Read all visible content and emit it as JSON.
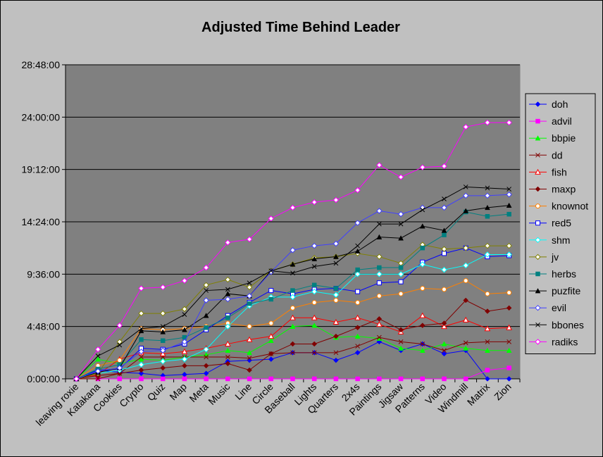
{
  "chart_data": {
    "type": "line",
    "title": "Adjusted Time Behind Leader",
    "xlabel": "",
    "ylabel": "",
    "y_unit": "hours",
    "ylim": [
      0,
      28.8
    ],
    "yticks": [
      0,
      4.8,
      9.6,
      14.4,
      19.2,
      24.0,
      28.8
    ],
    "ytick_labels": [
      "0:00:00",
      "4:48:00",
      "9:36:00",
      "14:24:00",
      "19:12:00",
      "24:00:00",
      "28:48:00"
    ],
    "grid": true,
    "legend_position": "right",
    "plot_background": "#808080",
    "categories": [
      "leaving roxie",
      "Katakana",
      "Cookies",
      "Crypto",
      "Quiz",
      "Map",
      "Meta",
      "Music",
      "Line",
      "Circle",
      "Baseball",
      "Lights",
      "Quarters",
      "2x4s",
      "Paintings",
      "Jigsaw",
      "Patterns",
      "Video",
      "Windmill",
      "Matrix",
      "Zion"
    ],
    "series": [
      {
        "name": "doh",
        "color": "#0000ff",
        "marker": "diamond",
        "values": [
          0,
          0.8,
          0.6,
          0.5,
          0.3,
          0.4,
          0.5,
          1.6,
          1.7,
          1.8,
          2.4,
          2.4,
          1.7,
          2.4,
          3.4,
          2.6,
          3.2,
          2.3,
          2.6,
          0,
          0
        ]
      },
      {
        "name": "advil",
        "color": "#ff00ff",
        "marker": "square",
        "values": [
          0,
          0,
          0,
          0,
          0,
          0,
          0,
          0,
          0,
          0,
          0,
          0,
          0,
          0,
          0,
          0,
          0,
          0,
          0,
          0.8,
          1.0
        ]
      },
      {
        "name": "bbpie",
        "color": "#00ff00",
        "marker": "triangle",
        "values": [
          0,
          1.8,
          1.4,
          1.8,
          1.7,
          2.0,
          2.2,
          2.6,
          2.4,
          3.5,
          4.8,
          4.9,
          3.8,
          3.9,
          3.7,
          2.8,
          2.6,
          3.2,
          2.8,
          2.6,
          2.6
        ]
      },
      {
        "name": "dd",
        "color": "#800000",
        "marker": "x",
        "values": [
          0,
          0,
          0.5,
          2.0,
          2.0,
          2.0,
          2.0,
          2.0,
          1.9,
          2.3,
          2.4,
          2.4,
          2.4,
          3.0,
          3.8,
          3.4,
          3.2,
          2.6,
          3.3,
          3.4,
          3.4
        ]
      },
      {
        "name": "fish",
        "color": "#ff0000",
        "marker": "triangle-open",
        "values": [
          0,
          0.4,
          1.8,
          2.4,
          2.3,
          2.5,
          2.8,
          3.2,
          3.6,
          3.9,
          5.6,
          5.6,
          5.2,
          5.6,
          5.0,
          4.3,
          5.8,
          4.8,
          5.4,
          4.6,
          4.7
        ]
      },
      {
        "name": "maxp",
        "color": "#800000",
        "marker": "diamond",
        "values": [
          0,
          0.3,
          0.5,
          0.8,
          1.0,
          1.2,
          1.2,
          1.4,
          0.8,
          2.3,
          3.2,
          3.2,
          3.9,
          4.7,
          5.5,
          4.5,
          4.9,
          5.1,
          7.2,
          6.2,
          6.5
        ]
      },
      {
        "name": "knownot",
        "color": "#ff8000",
        "marker": "circle-open",
        "values": [
          0,
          1.2,
          1.7,
          4.6,
          4.5,
          4.6,
          4.8,
          5.1,
          4.8,
          5.1,
          6.5,
          7.0,
          7.2,
          7.0,
          7.6,
          7.8,
          8.3,
          8.2,
          9.0,
          7.8,
          7.9
        ]
      },
      {
        "name": "red5",
        "color": "#0000ff",
        "marker": "square-open",
        "values": [
          0,
          0.8,
          0.9,
          2.8,
          2.7,
          3.2,
          4.5,
          5.8,
          7.0,
          8.1,
          7.8,
          8.2,
          8.3,
          8.0,
          8.8,
          8.9,
          10.7,
          11.5,
          12.0,
          11.2,
          11.3
        ]
      },
      {
        "name": "shm",
        "color": "#00ffff",
        "marker": "diamond-open",
        "values": [
          0,
          0.5,
          0.8,
          1.3,
          1.6,
          1.8,
          2.7,
          4.8,
          6.7,
          7.5,
          7.5,
          8.0,
          7.7,
          9.6,
          9.6,
          9.6,
          10.5,
          10.0,
          10.4,
          11.4,
          11.4
        ]
      },
      {
        "name": "jv",
        "color": "#808000",
        "marker": "diamond-open",
        "values": [
          0,
          0.5,
          3.4,
          6.0,
          6.0,
          6.4,
          8.6,
          9.1,
          8.4,
          9.9,
          10.5,
          11.1,
          11.2,
          11.5,
          11.2,
          10.6,
          12.3,
          11.9,
          12.0,
          12.2,
          12.2
        ]
      },
      {
        "name": "herbs",
        "color": "#008080",
        "marker": "square",
        "values": [
          0,
          0.9,
          1.3,
          3.6,
          3.5,
          3.8,
          4.7,
          5.6,
          6.9,
          7.3,
          8.1,
          8.6,
          8.3,
          10.0,
          10.2,
          10.2,
          12.0,
          13.2,
          15.3,
          14.9,
          15.1
        ]
      },
      {
        "name": "puzfite",
        "color": "#000000",
        "marker": "triangle",
        "values": [
          0,
          0.6,
          1.0,
          4.4,
          4.3,
          4.5,
          5.8,
          7.8,
          7.6,
          9.9,
          10.5,
          11.0,
          11.2,
          11.7,
          13.0,
          12.9,
          14.0,
          13.6,
          15.4,
          15.7,
          15.9
        ]
      },
      {
        "name": "evil",
        "color": "#4040ff",
        "marker": "diamond-open",
        "values": [
          0,
          0.7,
          1.0,
          2.5,
          2.6,
          3.4,
          7.2,
          7.3,
          7.6,
          9.8,
          11.8,
          12.2,
          12.4,
          14.3,
          15.4,
          15.1,
          15.7,
          15.7,
          16.8,
          16.8,
          16.9
        ]
      },
      {
        "name": "bbones",
        "color": "#000000",
        "marker": "x",
        "values": [
          0,
          2.1,
          3.1,
          4.6,
          4.8,
          5.9,
          8.1,
          8.2,
          8.8,
          9.9,
          9.7,
          10.3,
          10.6,
          12.2,
          14.2,
          14.2,
          15.5,
          16.5,
          17.6,
          17.5,
          17.4
        ]
      },
      {
        "name": "radiks",
        "color": "#ff00ff",
        "marker": "diamond-open",
        "values": [
          0,
          2.7,
          4.9,
          8.3,
          8.4,
          9.0,
          10.2,
          12.5,
          12.8,
          14.7,
          15.7,
          16.2,
          16.4,
          17.3,
          19.6,
          18.5,
          19.4,
          19.5,
          23.1,
          23.5,
          23.5
        ]
      }
    ]
  }
}
